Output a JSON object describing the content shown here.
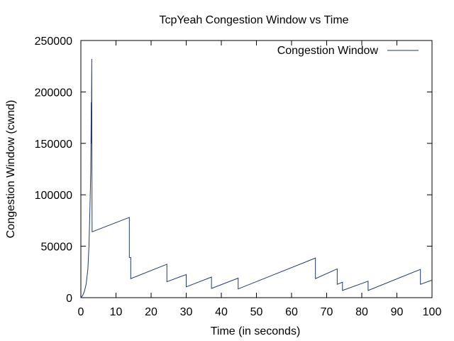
{
  "chart_data": {
    "type": "line",
    "title": "TcpYeah Congestion Window vs Time",
    "xlabel": "Time (in seconds)",
    "ylabel": "Congestion Window (cwnd)",
    "xlim": [
      0,
      100
    ],
    "ylim": [
      0,
      250000
    ],
    "xticks": [
      0,
      10,
      20,
      30,
      40,
      50,
      60,
      70,
      80,
      90,
      100
    ],
    "yticks": [
      0,
      50000,
      100000,
      150000,
      200000,
      250000
    ],
    "grid": false,
    "legend": "top-right",
    "series": [
      {
        "name": "Congestion Window",
        "color": "#1f3a75",
        "x": [
          0.0,
          0.5,
          1.0,
          1.5,
          2.0,
          2.3,
          2.5,
          2.7,
          2.8,
          2.9,
          2.95,
          3.0,
          3.05,
          3.1,
          3.15,
          3.2,
          3.2,
          13.8,
          13.8,
          14.2,
          14.2,
          24.5,
          24.5,
          30.0,
          30.0,
          37.2,
          37.2,
          44.8,
          44.8,
          66.8,
          66.8,
          73.0,
          73.0,
          74.5,
          74.5,
          81.8,
          81.8,
          96.7,
          96.7,
          100.0
        ],
        "y": [
          0,
          2000,
          6000,
          13000,
          28000,
          50000,
          75000,
          105000,
          122000,
          160000,
          190000,
          150000,
          200000,
          232000,
          120000,
          64000,
          64000,
          78000,
          39000,
          39000,
          18500,
          32500,
          15500,
          22500,
          10500,
          20000,
          9000,
          19000,
          8500,
          38500,
          18500,
          28000,
          13000,
          15000,
          7000,
          16000,
          7000,
          27500,
          13000,
          17000
        ]
      }
    ]
  }
}
